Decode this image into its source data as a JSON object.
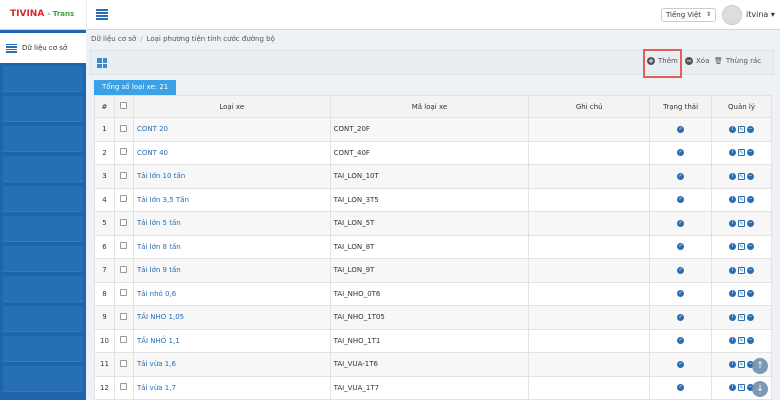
{
  "header": {
    "logo": "TIVINA",
    "logo_suffix": "- Trans",
    "language": "Tiếng Việt",
    "user": "itvina"
  },
  "sidebar": {
    "active_item": "Dữ liệu cơ sở"
  },
  "breadcrumb": [
    "Dữ liệu cơ sở",
    "Loại phương tiện tính cước đường bộ"
  ],
  "toolbar": {
    "add": "Thêm",
    "delete": "Xóa",
    "trash": "Thùng rác"
  },
  "tab": {
    "label": "Tổng số loại xe: 21"
  },
  "table": {
    "headers": [
      "#",
      "",
      "Loại xe",
      "Mã loại xe",
      "Ghi chú",
      "Trạng thái",
      "Quản lý"
    ],
    "rows": [
      {
        "no": "1",
        "name": "CONT 20",
        "code": "CONT_20F",
        "note": ""
      },
      {
        "no": "2",
        "name": "CONT 40",
        "code": "CONT_40F",
        "note": ""
      },
      {
        "no": "3",
        "name": "Tải lớn 10 tấn",
        "code": "TAI_LON_10T",
        "note": ""
      },
      {
        "no": "4",
        "name": "Tải lớn 3,5 Tấn",
        "code": "TAI_LON_3T5",
        "note": ""
      },
      {
        "no": "5",
        "name": "Tải lớn 5 tấn",
        "code": "TAI_LON_5T",
        "note": ""
      },
      {
        "no": "6",
        "name": "Tải lớn 8 tấn",
        "code": "TAI_LON_8T",
        "note": ""
      },
      {
        "no": "7",
        "name": "Tải lớn 9 tấn",
        "code": "TAI_LON_9T",
        "note": ""
      },
      {
        "no": "8",
        "name": "Tải nhỏ 0,6",
        "code": "TAI_NHO_0T6",
        "note": ""
      },
      {
        "no": "9",
        "name": "TẢI NHO 1,05",
        "code": "TAI_NHO_1T05",
        "note": ""
      },
      {
        "no": "10",
        "name": "TẢI NHỎ 1,1",
        "code": "TAI_NHO_1T1",
        "note": ""
      },
      {
        "no": "11",
        "name": "Tải vừa 1,6",
        "code": "TAI_VUA-1T6",
        "note": ""
      },
      {
        "no": "12",
        "name": "Tải vừa 1,7",
        "code": "TAI_VUA_1T7",
        "note": ""
      }
    ]
  },
  "colors": {
    "primary": "#2a6cb0",
    "sidebar": "#1f65ad",
    "tab": "#3aa1e8",
    "highlight": "#e06055"
  }
}
